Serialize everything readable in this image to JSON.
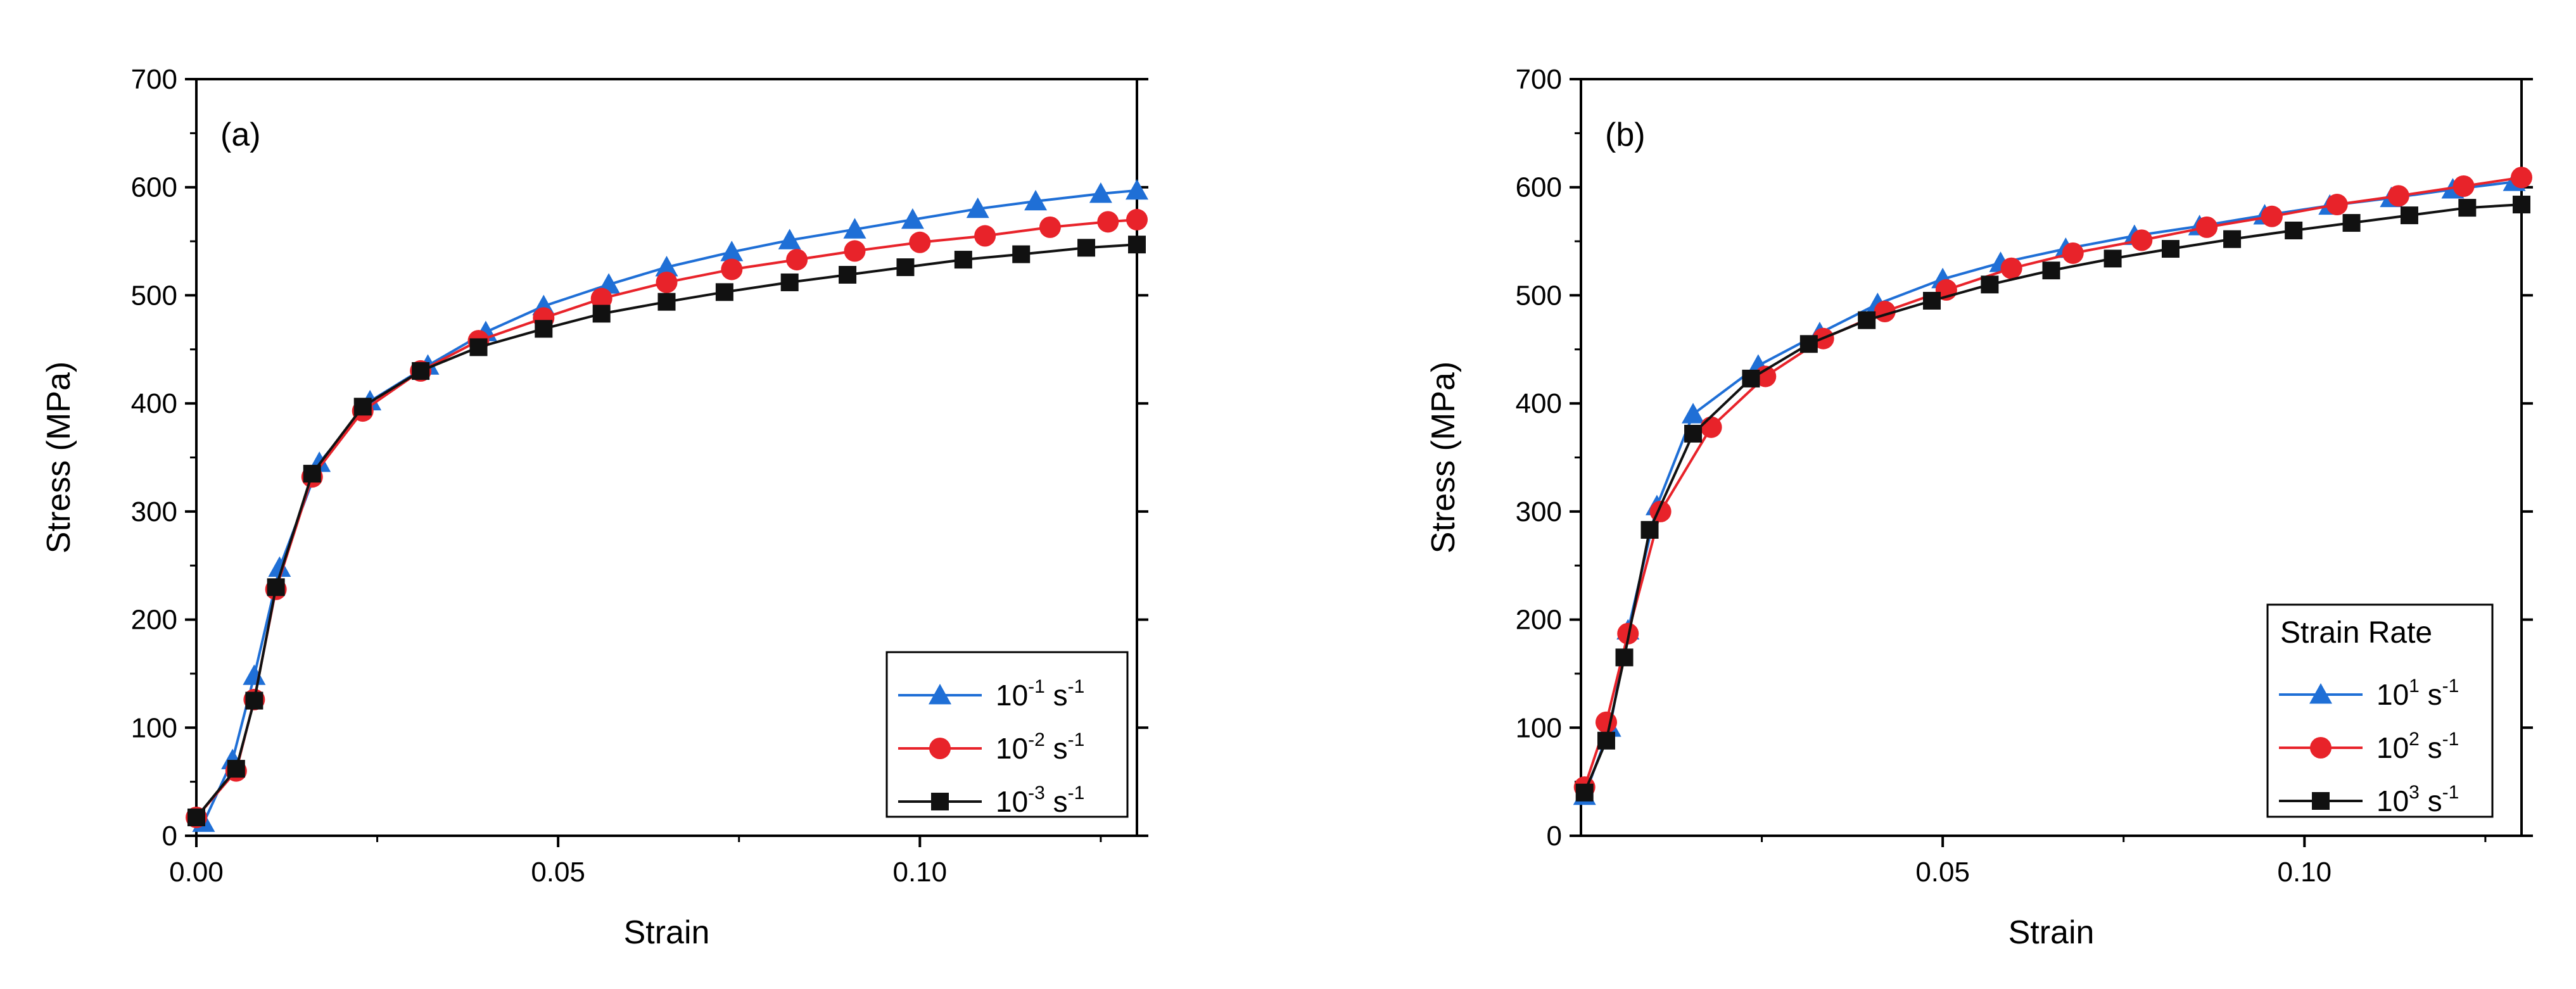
{
  "chart_data": [
    {
      "type": "line",
      "panel_label": "(a)",
      "xlabel": "Strain",
      "ylabel": "Stress (MPa)",
      "xlim": [
        0,
        0.13
      ],
      "ylim": [
        0,
        700
      ],
      "xticks": [
        0,
        0.05,
        0.1
      ],
      "xtick_labels": [
        "0.00",
        "0.05",
        "0.10"
      ],
      "yticks": [
        0,
        100,
        200,
        300,
        400,
        500,
        600,
        700
      ],
      "ytick_labels": [
        "0",
        "100",
        "200",
        "300",
        "400",
        "500",
        "600",
        "700"
      ],
      "legend_title": "",
      "legend_position": "bottom-right",
      "series": [
        {
          "name": "10-1 s-1",
          "label_base": "10",
          "label_exp": "-1",
          "label_unit": "s",
          "label_unit_exp": "-1",
          "color": "#1f6fd6",
          "marker": "triangle",
          "x": [
            0.001,
            0.005,
            0.008,
            0.0115,
            0.017,
            0.024,
            0.032,
            0.04,
            0.048,
            0.057,
            0.065,
            0.074,
            0.082,
            0.091,
            0.099,
            0.108,
            0.116,
            0.125,
            0.13
          ],
          "y": [
            12,
            70,
            148,
            248,
            345,
            402,
            435,
            466,
            490,
            510,
            526,
            540,
            551,
            561,
            570,
            580,
            587,
            594,
            597
          ]
        },
        {
          "name": "10-2 s-1",
          "label_base": "10",
          "label_exp": "-2",
          "label_unit": "s",
          "label_unit_exp": "-1",
          "color": "#e8232a",
          "marker": "circle",
          "x": [
            0.0,
            0.0055,
            0.008,
            0.011,
            0.016,
            0.023,
            0.031,
            0.039,
            0.048,
            0.056,
            0.065,
            0.074,
            0.083,
            0.091,
            0.1,
            0.109,
            0.118,
            0.126,
            0.13
          ],
          "y": [
            17,
            60,
            126,
            228,
            332,
            393,
            430,
            458,
            479,
            497,
            512,
            524,
            533,
            541,
            549,
            555,
            563,
            568,
            570
          ]
        },
        {
          "name": "10-3 s-1",
          "label_base": "10",
          "label_exp": "-3",
          "label_unit": "s",
          "label_unit_exp": "-1",
          "color": "#111111",
          "marker": "square",
          "x": [
            0.0,
            0.0055,
            0.008,
            0.011,
            0.016,
            0.023,
            0.031,
            0.039,
            0.048,
            0.056,
            0.065,
            0.073,
            0.082,
            0.09,
            0.098,
            0.106,
            0.114,
            0.123,
            0.13
          ],
          "y": [
            17,
            62,
            125,
            230,
            335,
            397,
            430,
            452,
            469,
            483,
            494,
            503,
            512,
            519,
            526,
            533,
            538,
            544,
            547
          ]
        }
      ]
    },
    {
      "type": "line",
      "panel_label": "(b)",
      "xlabel": "Strain",
      "ylabel": "Stress (MPa)",
      "xlim": [
        0,
        0.13
      ],
      "ylim": [
        0,
        700
      ],
      "xticks": [
        0.05,
        0.1
      ],
      "xtick_labels": [
        "0.05",
        "0.10"
      ],
      "yticks": [
        0,
        100,
        200,
        300,
        400,
        500,
        600,
        700
      ],
      "ytick_labels": [
        "0",
        "100",
        "200",
        "300",
        "400",
        "500",
        "600",
        "700"
      ],
      "legend_title": "Strain Rate",
      "legend_position": "bottom-right",
      "series": [
        {
          "name": "101 s-1",
          "label_base": "10",
          "label_exp": "1",
          "label_unit": "s",
          "label_unit_exp": "-1",
          "color": "#1f6fd6",
          "marker": "triangle",
          "x": [
            0.0005,
            0.004,
            0.0065,
            0.0105,
            0.0155,
            0.0245,
            0.033,
            0.041,
            0.05,
            0.058,
            0.067,
            0.0765,
            0.0855,
            0.0945,
            0.1035,
            0.112,
            0.1205,
            0.129
          ],
          "y": [
            37,
            100,
            190,
            305,
            390,
            435,
            465,
            492,
            515,
            530,
            543,
            555,
            564,
            574,
            583,
            590,
            598,
            605
          ]
        },
        {
          "name": "102 s-1",
          "label_base": "10",
          "label_exp": "2",
          "label_unit": "s",
          "label_unit_exp": "-1",
          "color": "#e8232a",
          "marker": "circle",
          "x": [
            0.0005,
            0.0035,
            0.0065,
            0.011,
            0.018,
            0.0255,
            0.0335,
            0.042,
            0.0505,
            0.0595,
            0.068,
            0.0775,
            0.0865,
            0.0955,
            0.1045,
            0.113,
            0.122,
            0.13
          ],
          "y": [
            45,
            105,
            187,
            300,
            378,
            425,
            460,
            485,
            505,
            525,
            539,
            551,
            563,
            573,
            584,
            592,
            601,
            609
          ]
        },
        {
          "name": "103 s-1",
          "label_base": "10",
          "label_exp": "3",
          "label_unit": "s",
          "label_unit_exp": "-1",
          "color": "#111111",
          "marker": "square",
          "x": [
            0.0005,
            0.0035,
            0.006,
            0.0095,
            0.0155,
            0.0235,
            0.0315,
            0.0395,
            0.0485,
            0.0565,
            0.065,
            0.0735,
            0.0815,
            0.09,
            0.0985,
            0.1065,
            0.1145,
            0.1225,
            0.13
          ],
          "y": [
            40,
            88,
            165,
            283,
            372,
            423,
            455,
            477,
            495,
            510,
            523,
            534,
            543,
            552,
            560,
            567,
            574,
            581,
            584
          ]
        }
      ]
    }
  ]
}
